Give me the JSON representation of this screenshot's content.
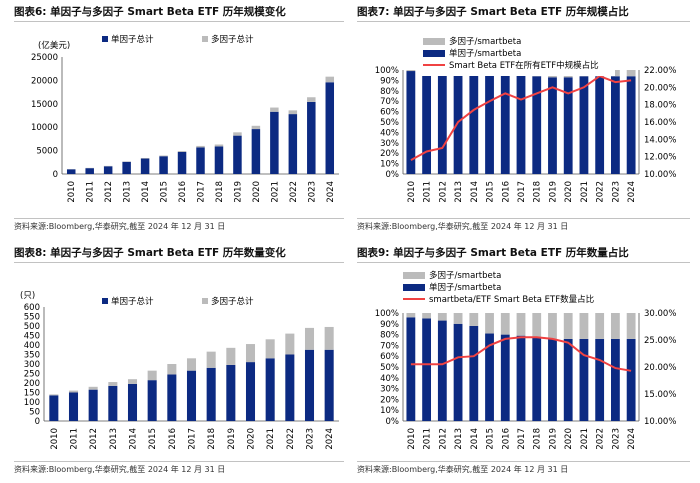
{
  "colors": {
    "navy": "#0c2a82",
    "gray": "#bbbbbb",
    "red": "#f04242"
  },
  "panels": [
    {
      "title": "图表6:  单因子与多因子 Smart Beta ETF 历年规模变化",
      "source": "资料来源:Bloomberg,华泰研究,截至 2024 年 12 月 31 日"
    },
    {
      "title": "图表7:  单因子与多因子 Smart Beta ETF 历年规模占比",
      "source": "资料来源:Bloomberg,华泰研究,截至 2024 年 12 月 31 日"
    },
    {
      "title": "图表8:  单因子与多因子 Smart Beta ETF 历年数量变化",
      "source": "资料来源:Bloomberg,华泰研究,截至 2024 年 12 月 31 日"
    },
    {
      "title": "图表9:  单因子与多因子 Smart Beta ETF 历年数量占比",
      "source": "资料来源:Bloomberg,华泰研究,截至 2024 年 12 月 31 日"
    }
  ],
  "chart_data": [
    {
      "type": "bar",
      "stacked": true,
      "title": "单因子与多因子 Smart Beta ETF 历年规模变化",
      "unit_label": "(亿美元)",
      "categories": [
        "2010",
        "2011",
        "2012",
        "2013",
        "2014",
        "2015",
        "2016",
        "2017",
        "2018",
        "2019",
        "2020",
        "2021",
        "2022",
        "2023",
        "2024"
      ],
      "series": [
        {
          "name": "单因子总计",
          "color": "#0c2a82",
          "values": [
            1000,
            1250,
            1650,
            2600,
            3300,
            3800,
            4700,
            5700,
            5900,
            8200,
            9600,
            13300,
            12800,
            15400,
            19600
          ]
        },
        {
          "name": "多因子总计",
          "color": "#bbbbbb",
          "values": [
            50,
            60,
            80,
            100,
            120,
            150,
            200,
            300,
            400,
            700,
            700,
            900,
            800,
            1000,
            1200
          ]
        }
      ],
      "ylim": [
        0,
        25000
      ],
      "yticks": [
        "0",
        "5000",
        "10000",
        "15000",
        "20000",
        "25000"
      ],
      "legend_position": "top"
    },
    {
      "type": "bar",
      "stacked": true,
      "title": "单因子与多因子 Smart Beta ETF 历年规模占比",
      "categories": [
        "2010",
        "2011",
        "2012",
        "2013",
        "2014",
        "2015",
        "2016",
        "2017",
        "2018",
        "2019",
        "2020",
        "2021",
        "2022",
        "2023",
        "2024"
      ],
      "series": [
        {
          "name": "多因子/smartbeta",
          "color": "#bbbbbb",
          "values": [
            0.01,
            0.01,
            0.01,
            0.02,
            0.02,
            0.03,
            0.04,
            0.05,
            0.06,
            0.07,
            0.07,
            0.06,
            0.06,
            0.06,
            0.06
          ]
        },
        {
          "name": "单因子/smartbeta",
          "color": "#0c2a82",
          "values": [
            0.99,
            0.99,
            0.99,
            0.98,
            0.98,
            0.97,
            0.96,
            0.95,
            0.94,
            0.93,
            0.93,
            0.94,
            0.94,
            0.94,
            0.94
          ]
        }
      ],
      "line": {
        "name": "Smart Beta ETF在所有ETF中规模占比",
        "color": "#f04242",
        "values": [
          0.116,
          0.126,
          0.13,
          0.16,
          0.174,
          0.184,
          0.193,
          0.186,
          0.193,
          0.2,
          0.193,
          0.2,
          0.213,
          0.206,
          0.208
        ]
      },
      "ylim_left": [
        0,
        1
      ],
      "yticks_left": [
        "0%",
        "10%",
        "20%",
        "30%",
        "40%",
        "50%",
        "60%",
        "70%",
        "80%",
        "90%",
        "100%"
      ],
      "ylim_right": [
        0.1,
        0.22
      ],
      "yticks_right": [
        "10.00%",
        "12.00%",
        "14.00%",
        "16.00%",
        "18.00%",
        "20.00%",
        "22.00%"
      ],
      "legend_position": "top"
    },
    {
      "type": "bar",
      "stacked": true,
      "title": "单因子与多因子 Smart Beta ETF 历年数量变化",
      "unit_label": "(只)",
      "categories": [
        "2010",
        "2011",
        "2012",
        "2013",
        "2014",
        "2015",
        "2016",
        "2017",
        "2018",
        "2019",
        "2020",
        "2021",
        "2022",
        "2023",
        "2024"
      ],
      "series": [
        {
          "name": "单因子总计",
          "color": "#0c2a82",
          "values": [
            135,
            150,
            165,
            185,
            195,
            215,
            245,
            265,
            280,
            295,
            310,
            330,
            350,
            375,
            375
          ]
        },
        {
          "name": "多因子总计",
          "color": "#bbbbbb",
          "values": [
            5,
            10,
            15,
            20,
            25,
            50,
            55,
            65,
            85,
            90,
            95,
            100,
            110,
            115,
            120
          ]
        }
      ],
      "ylim": [
        0,
        600
      ],
      "yticks": [
        "0",
        "50",
        "100",
        "150",
        "200",
        "250",
        "300",
        "350",
        "400",
        "450",
        "500",
        "550",
        "600"
      ],
      "legend_position": "top"
    },
    {
      "type": "bar",
      "stacked": true,
      "title": "单因子与多因子 Smart Beta ETF 历年数量占比",
      "categories": [
        "2010",
        "2011",
        "2012",
        "2013",
        "2014",
        "2015",
        "2016",
        "2017",
        "2018",
        "2019",
        "2020",
        "2021",
        "2022",
        "2023",
        "2024"
      ],
      "series": [
        {
          "name": "多因子/smartbeta",
          "color": "#bbbbbb",
          "values": [
            0.04,
            0.05,
            0.07,
            0.1,
            0.12,
            0.19,
            0.2,
            0.21,
            0.23,
            0.24,
            0.24,
            0.24,
            0.24,
            0.24,
            0.24
          ]
        },
        {
          "name": "单因子/smartbeta",
          "color": "#0c2a82",
          "values": [
            0.96,
            0.95,
            0.93,
            0.9,
            0.88,
            0.81,
            0.8,
            0.79,
            0.77,
            0.76,
            0.76,
            0.76,
            0.76,
            0.76,
            0.76
          ]
        }
      ],
      "line": {
        "name": "smartbeta/ETF Smart Beta ETF数量占比",
        "color": "#f04242",
        "values": [
          0.205,
          0.205,
          0.205,
          0.218,
          0.22,
          0.24,
          0.252,
          0.255,
          0.255,
          0.252,
          0.245,
          0.222,
          0.213,
          0.198,
          0.193
        ]
      },
      "ylim_left": [
        0,
        1
      ],
      "yticks_left": [
        "0%",
        "10%",
        "20%",
        "30%",
        "40%",
        "50%",
        "60%",
        "70%",
        "80%",
        "90%",
        "100%"
      ],
      "ylim_right": [
        0.1,
        0.3
      ],
      "yticks_right": [
        "10.00%",
        "15.00%",
        "20.00%",
        "25.00%",
        "30.00%"
      ],
      "legend_position": "top"
    }
  ]
}
